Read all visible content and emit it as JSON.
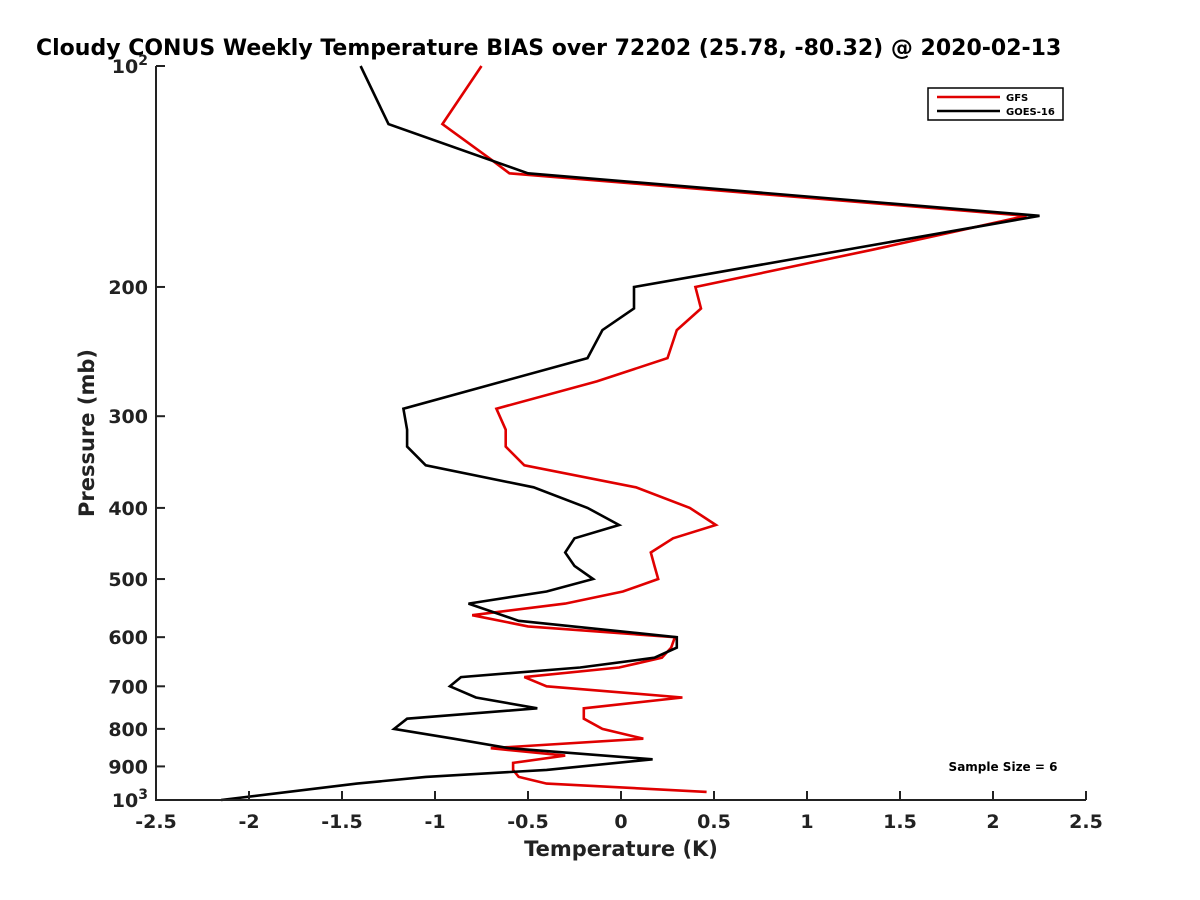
{
  "chart_data": {
    "type": "line",
    "title": "Cloudy CONUS Weekly Temperature BIAS over 72202 (25.78, -80.32) @ 2020-02-13",
    "xlabel": "Temperature (K)",
    "ylabel": "Pressure (mb)",
    "xlim": [
      -2.5,
      2.5
    ],
    "ylim": [
      100,
      1000
    ],
    "y_scale": "log",
    "y_reversed": true,
    "x_ticks": [
      "-2.5",
      "-2",
      "-1.5",
      "-1",
      "-0.5",
      "0",
      "0.5",
      "1",
      "1.5",
      "2",
      "2.5"
    ],
    "y_ticks": [
      {
        "value": 100,
        "base": "10",
        "exp": "2"
      },
      {
        "value": 200,
        "label": "200"
      },
      {
        "value": 300,
        "label": "300"
      },
      {
        "value": 400,
        "label": "400"
      },
      {
        "value": 500,
        "label": "500"
      },
      {
        "value": 600,
        "label": "600"
      },
      {
        "value": 700,
        "label": "700"
      },
      {
        "value": 800,
        "label": "800"
      },
      {
        "value": 900,
        "label": "900"
      },
      {
        "value": 1000,
        "base": "10",
        "exp": "3"
      }
    ],
    "legend_position": "top-right",
    "annotation": "Sample Size = 6",
    "series": [
      {
        "name": "GFS",
        "color": "#e00000",
        "points": [
          [
            -0.75,
            100
          ],
          [
            -0.96,
            120
          ],
          [
            -0.7,
            134
          ],
          [
            -0.6,
            140
          ],
          [
            2.18,
            160
          ],
          [
            1.35,
            178
          ],
          [
            0.4,
            200
          ],
          [
            0.43,
            214
          ],
          [
            0.3,
            229
          ],
          [
            0.25,
            250
          ],
          [
            -0.13,
            269
          ],
          [
            -0.67,
            293
          ],
          [
            -0.62,
            313
          ],
          [
            -0.62,
            330
          ],
          [
            -0.52,
            350
          ],
          [
            0.08,
            375
          ],
          [
            0.37,
            400
          ],
          [
            0.51,
            422
          ],
          [
            0.28,
            440
          ],
          [
            0.16,
            460
          ],
          [
            0.18,
            480
          ],
          [
            0.2,
            500
          ],
          [
            0.01,
            520
          ],
          [
            -0.3,
            540
          ],
          [
            -0.8,
            560
          ],
          [
            -0.5,
            580
          ],
          [
            0.29,
            600
          ],
          [
            0.27,
            620
          ],
          [
            0.22,
            640
          ],
          [
            -0.01,
            660
          ],
          [
            -0.52,
            680
          ],
          [
            -0.4,
            700
          ],
          [
            0.33,
            725
          ],
          [
            -0.2,
            750
          ],
          [
            -0.2,
            775
          ],
          [
            -0.1,
            800
          ],
          [
            0.12,
            825
          ],
          [
            -0.7,
            850
          ],
          [
            -0.3,
            870
          ],
          [
            -0.58,
            890
          ],
          [
            -0.58,
            910
          ],
          [
            -0.55,
            930
          ],
          [
            -0.4,
            950
          ],
          [
            0.46,
            975
          ]
        ]
      },
      {
        "name": "GOES-16",
        "color": "#000000",
        "points": [
          [
            -1.4,
            100
          ],
          [
            -1.25,
            120
          ],
          [
            -0.5,
            140
          ],
          [
            2.25,
            160
          ],
          [
            1.1,
            180
          ],
          [
            0.07,
            200
          ],
          [
            0.07,
            214
          ],
          [
            -0.1,
            229
          ],
          [
            -0.18,
            250
          ],
          [
            -1.17,
            293
          ],
          [
            -1.15,
            313
          ],
          [
            -1.15,
            330
          ],
          [
            -1.05,
            350
          ],
          [
            -0.47,
            375
          ],
          [
            -0.18,
            400
          ],
          [
            -0.01,
            422
          ],
          [
            -0.25,
            440
          ],
          [
            -0.3,
            460
          ],
          [
            -0.25,
            480
          ],
          [
            -0.15,
            500
          ],
          [
            -0.4,
            520
          ],
          [
            -0.82,
            540
          ],
          [
            -0.55,
            570
          ],
          [
            0.3,
            600
          ],
          [
            0.3,
            620
          ],
          [
            0.18,
            640
          ],
          [
            -0.22,
            660
          ],
          [
            -0.86,
            680
          ],
          [
            -0.92,
            700
          ],
          [
            -0.78,
            725
          ],
          [
            -0.45,
            750
          ],
          [
            -1.15,
            775
          ],
          [
            -1.22,
            800
          ],
          [
            -0.9,
            825
          ],
          [
            -0.6,
            850
          ],
          [
            0.17,
            880
          ],
          [
            -0.4,
            910
          ],
          [
            -1.05,
            930
          ],
          [
            -1.42,
            950
          ],
          [
            -2.15,
            1000
          ]
        ]
      }
    ]
  }
}
